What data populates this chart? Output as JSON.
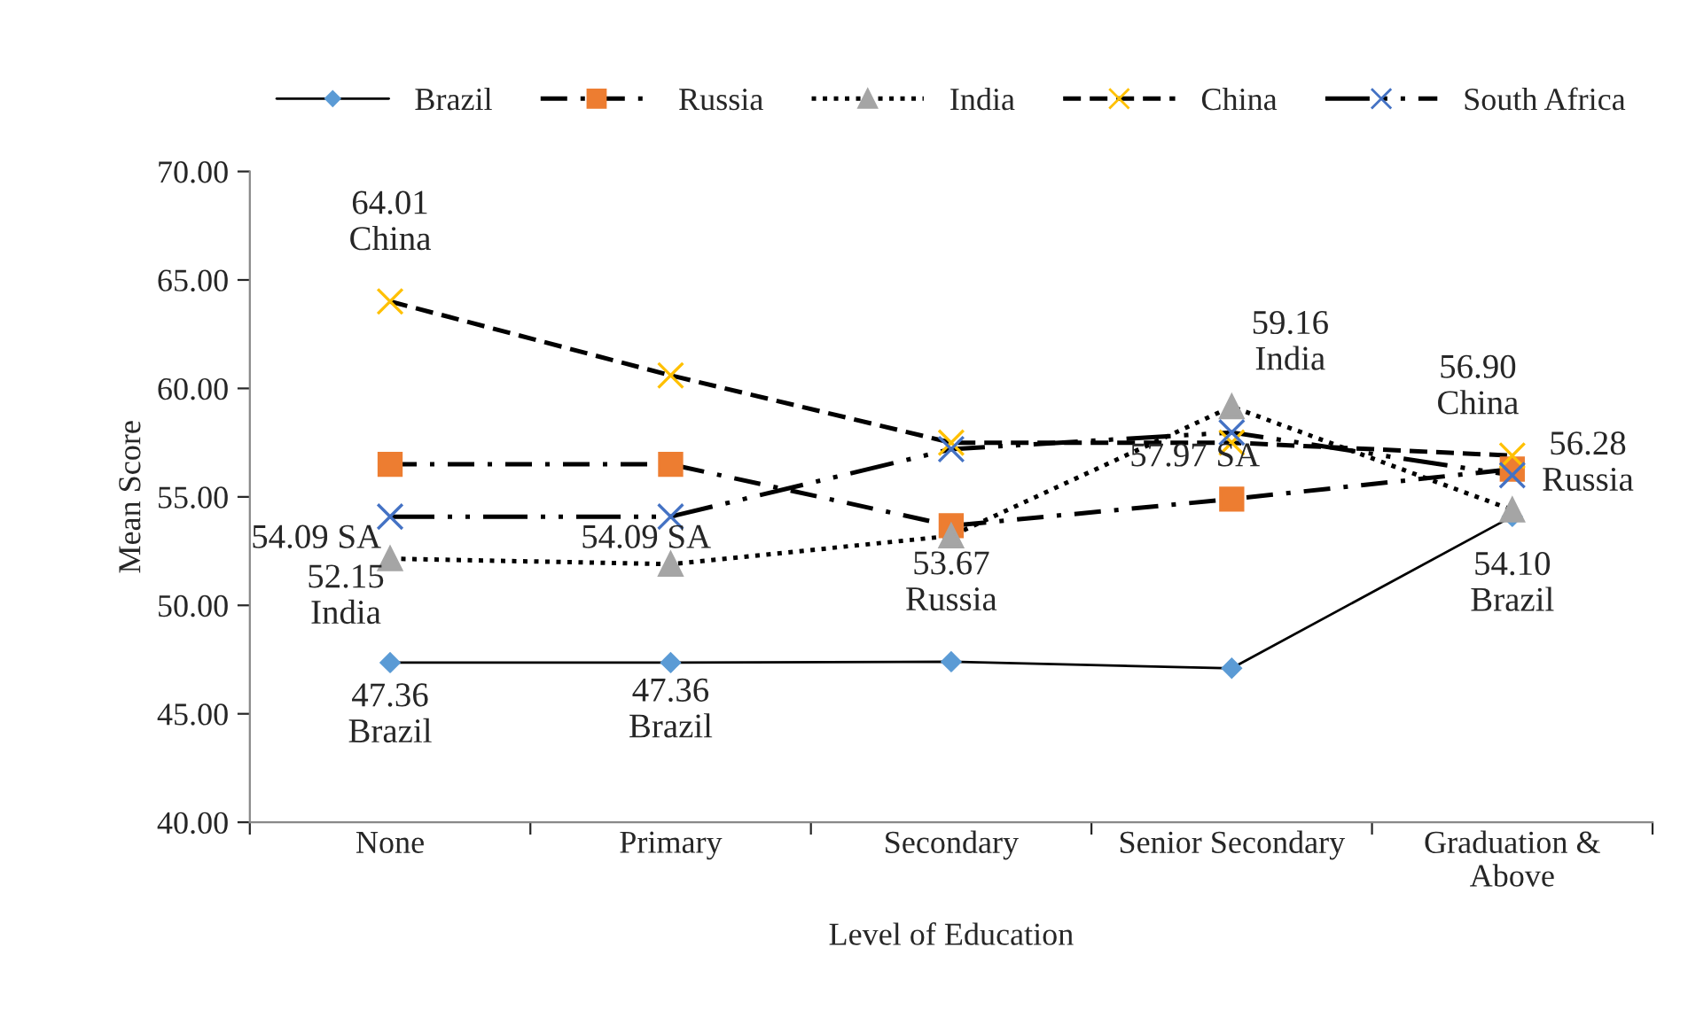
{
  "chart_data": {
    "type": "line",
    "xlabel": "Level of Education",
    "ylabel": "Mean Score",
    "categories": [
      "None",
      "Primary",
      "Secondary",
      "Senior Secondary",
      "Graduation &\nAbove"
    ],
    "ylim": [
      40,
      70
    ],
    "yticks": [
      {
        "value": 40,
        "label": "40.00"
      },
      {
        "value": 45,
        "label": "45.00"
      },
      {
        "value": 50,
        "label": "50.00"
      },
      {
        "value": 55,
        "label": "55.00"
      },
      {
        "value": 60,
        "label": "60.00"
      },
      {
        "value": 65,
        "label": "65.00"
      },
      {
        "value": 70,
        "label": "70.00"
      }
    ],
    "grid": false,
    "legend": "top",
    "series": [
      {
        "name": "Brazil",
        "color": "#5b9bd5",
        "marker": "diamond",
        "line_style": "solid",
        "values": [
          47.36,
          47.36,
          47.4,
          47.1,
          54.1
        ],
        "value_labels": [
          "47.36\nBrazil",
          "47.36\nBrazil",
          null,
          null,
          "54.10\nBrazil"
        ]
      },
      {
        "name": "Russia",
        "color": "#ed7d31",
        "marker": "square",
        "line_style": "dashdot",
        "values": [
          56.5,
          56.5,
          53.67,
          54.9,
          56.28
        ],
        "value_labels": [
          null,
          null,
          "53.67\nRussia",
          null,
          "56.28\nRussia"
        ]
      },
      {
        "name": "India",
        "color": "#a5a5a5",
        "marker": "triangle",
        "line_style": "dotted",
        "values": [
          52.15,
          51.9,
          53.2,
          59.16,
          54.4
        ],
        "value_labels": [
          "52.15\nIndia",
          null,
          null,
          "59.16\nIndia",
          null
        ]
      },
      {
        "name": "China",
        "color": "#ffc000",
        "marker": "cross",
        "line_style": "dashed",
        "values": [
          64.01,
          60.6,
          57.5,
          57.5,
          56.9
        ],
        "value_labels": [
          "64.01\nChina",
          null,
          null,
          null,
          "56.90\nChina"
        ]
      },
      {
        "name": "South Africa",
        "color": "#4472c4",
        "marker": "cross",
        "line_style": "longdashdot",
        "values": [
          54.09,
          54.09,
          57.2,
          57.97,
          56.0
        ],
        "value_labels": [
          "54.09 SA",
          "54.09 SA",
          null,
          "57.97 SA",
          null
        ]
      }
    ]
  }
}
